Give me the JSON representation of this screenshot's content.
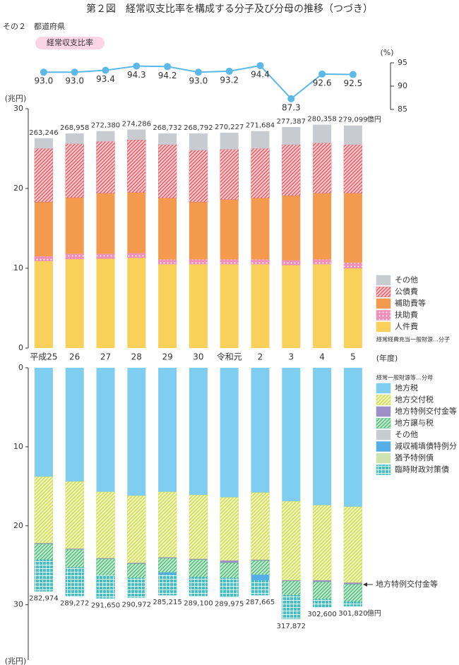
{
  "title": "第２図　経常収支比率を構成する分子及び分母の推移（つづき）",
  "subtitle": "その２　都道府県",
  "chart_data": [
    {
      "type": "line",
      "name": "経常収支比率",
      "color": "#5bb8e8",
      "y_unit": "(%)",
      "ylim": [
        85,
        95
      ],
      "yticks": [
        85,
        90,
        95
      ],
      "values": [
        93.0,
        93.0,
        93.4,
        94.3,
        94.2,
        93.0,
        93.2,
        94.4,
        87.3,
        92.6,
        92.5
      ],
      "value_labels": [
        "93.0",
        "93.0",
        "93.4",
        "94.3",
        "94.2",
        "93.0",
        "93.2",
        "94.4",
        "87.3",
        "92.6",
        "92.5"
      ]
    },
    {
      "type": "stacked_bar",
      "y_unit": "(兆円)",
      "x_unit": "(年度)",
      "ylim": [
        0,
        30
      ],
      "yticks": [
        0,
        10,
        20,
        30
      ],
      "categories": [
        "平成25",
        "26",
        "27",
        "28",
        "29",
        "30",
        "令和元",
        "2",
        "3",
        "4",
        "5"
      ],
      "series": [
        {
          "name": "人件費",
          "color": "#f9d05a",
          "values": [
            10.9,
            11.15,
            11.2,
            11.3,
            10.5,
            10.5,
            10.5,
            10.5,
            10.4,
            10.5,
            10.0
          ]
        },
        {
          "name": "扶助費",
          "color": "#ef8fb8",
          "pattern": "dots",
          "values": [
            0.6,
            0.65,
            0.6,
            0.6,
            0.6,
            0.6,
            0.6,
            0.6,
            0.6,
            0.6,
            0.7
          ]
        },
        {
          "name": "補助費等",
          "color": "#f39a4e",
          "values": [
            6.8,
            7.05,
            7.6,
            7.6,
            7.7,
            7.2,
            7.5,
            7.7,
            8.1,
            8.3,
            8.7
          ]
        },
        {
          "name": "公債費",
          "color": "#e0505a",
          "pattern": "hatch",
          "values": [
            6.7,
            6.75,
            6.5,
            6.6,
            6.7,
            6.5,
            6.3,
            6.2,
            6.4,
            6.3,
            6.1
          ]
        },
        {
          "name": "その他",
          "color": "#c8ccd0",
          "values": [
            1.3,
            1.3,
            1.3,
            1.3,
            1.4,
            2.1,
            2.1,
            2.2,
            2.2,
            2.3,
            2.4
          ]
        }
      ],
      "totals": {
        "values": [
          263246,
          268958,
          272380,
          274286,
          268732,
          268792,
          270227,
          271684,
          277387,
          280358,
          279099
        ],
        "value_labels": [
          "263,246",
          "268,958",
          "272,380",
          "274,286",
          "268,732",
          "268,792",
          "270,227",
          "271,684",
          "277,387",
          "280,358",
          "279,099"
        ],
        "unit": "億円"
      },
      "legend_note": "経常経費充当一般財源…分子"
    },
    {
      "type": "stacked_bar",
      "inverted": true,
      "y_unit": "(兆円)",
      "ylim": [
        0,
        37
      ],
      "yticks": [
        0,
        10,
        20,
        30
      ],
      "series": [
        {
          "name": "地方税",
          "color": "#7fcdf0",
          "values": [
            13.8,
            14.4,
            15.7,
            16.2,
            15.7,
            16.1,
            16.4,
            15.8,
            16.9,
            17.4,
            17.6
          ]
        },
        {
          "name": "地方交付税",
          "color": "#cbd93a",
          "pattern": "hatch",
          "values": [
            8.4,
            8.5,
            8.4,
            8.5,
            8.3,
            8.1,
            8.0,
            8.5,
            10.0,
            9.5,
            9.6
          ]
        },
        {
          "name": "地方特例交付金等",
          "color": "#9c8fc7",
          "values": [
            0.1,
            0.1,
            0.1,
            0.1,
            0.1,
            0.1,
            0.3,
            0.1,
            0.1,
            0.2,
            0.2
          ]
        },
        {
          "name": "地方譲与税",
          "color": "#3fb56c",
          "pattern": "hatch",
          "values": [
            2.0,
            2.3,
            2.1,
            1.8,
            1.8,
            2.2,
            1.9,
            1.8,
            1.8,
            2.2,
            2.2
          ]
        },
        {
          "name": "その他",
          "color": "#c8ccd0",
          "values": [
            0,
            0,
            0,
            0,
            0,
            0,
            0,
            0,
            0,
            0,
            0
          ]
        },
        {
          "name": "減収補填債特例分",
          "color": "#55aee8",
          "values": [
            0,
            0,
            0,
            0,
            0.3,
            0,
            0,
            0.7,
            0,
            0,
            0
          ]
        },
        {
          "name": "猶予特例債",
          "color": "#cfe3b0",
          "values": [
            0,
            0,
            0,
            0,
            0,
            0,
            0,
            0,
            0,
            0,
            0
          ]
        },
        {
          "name": "臨時財政対策債",
          "color": "#3ec1c4",
          "pattern": "grid",
          "values": [
            4.0,
            3.6,
            2.9,
            2.5,
            2.6,
            2.4,
            2.4,
            1.9,
            3.0,
            1.0,
            0.6
          ]
        }
      ],
      "totals": {
        "values": [
          282974,
          289272,
          291650,
          290972,
          285215,
          289100,
          289975,
          287665,
          317872,
          302600,
          301820
        ],
        "value_labels": [
          "282,974",
          "289,272",
          "291,650",
          "290,972",
          "285,215",
          "289,100",
          "289,975",
          "287,665",
          "317,872",
          "302,600",
          "301,820"
        ],
        "unit": "億円"
      },
      "legend_note": "経常一般財源等…分母",
      "annotation": "地方特例交付金等"
    }
  ]
}
